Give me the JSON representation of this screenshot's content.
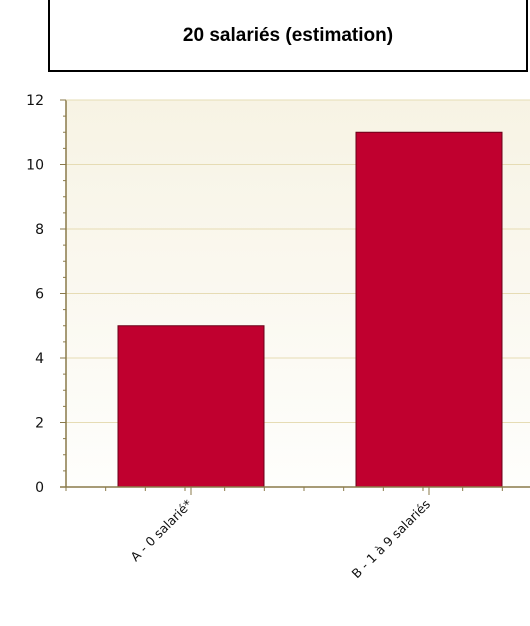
{
  "title": "20 salariés (estimation)",
  "colors": {
    "bar": "#c0002f",
    "bar_stroke": "#6a0018",
    "plot_bg_top": "#f7f3e4",
    "plot_bg_bottom": "#fefefc",
    "grid": "#e6dcb4",
    "axis": "#8a7a4a"
  },
  "chart_data": {
    "type": "bar",
    "title": "20 salariés (estimation)",
    "xlabel": "",
    "ylabel": "",
    "categories": [
      "A - 0 salarié*",
      "B - 1 à 9 salariés"
    ],
    "values": [
      5,
      11
    ],
    "ylim": [
      0,
      12
    ],
    "yticks": [
      0,
      2,
      4,
      6,
      8,
      10,
      12
    ],
    "grid": true,
    "legend": "none"
  }
}
